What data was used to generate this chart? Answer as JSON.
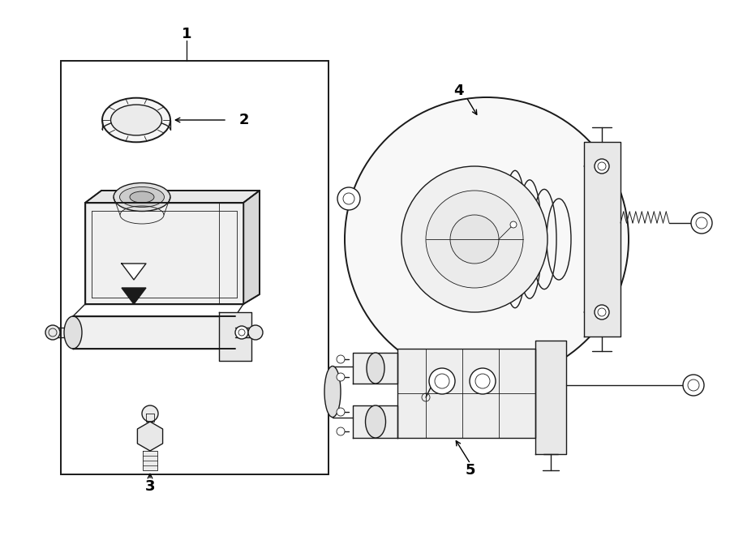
{
  "bg_color": "#ffffff",
  "lc": "#1a1a1a",
  "lw": 1.0,
  "lw_thin": 0.6,
  "lw_thick": 1.4,
  "fig_width": 9.0,
  "fig_height": 6.61,
  "dpi": 100
}
